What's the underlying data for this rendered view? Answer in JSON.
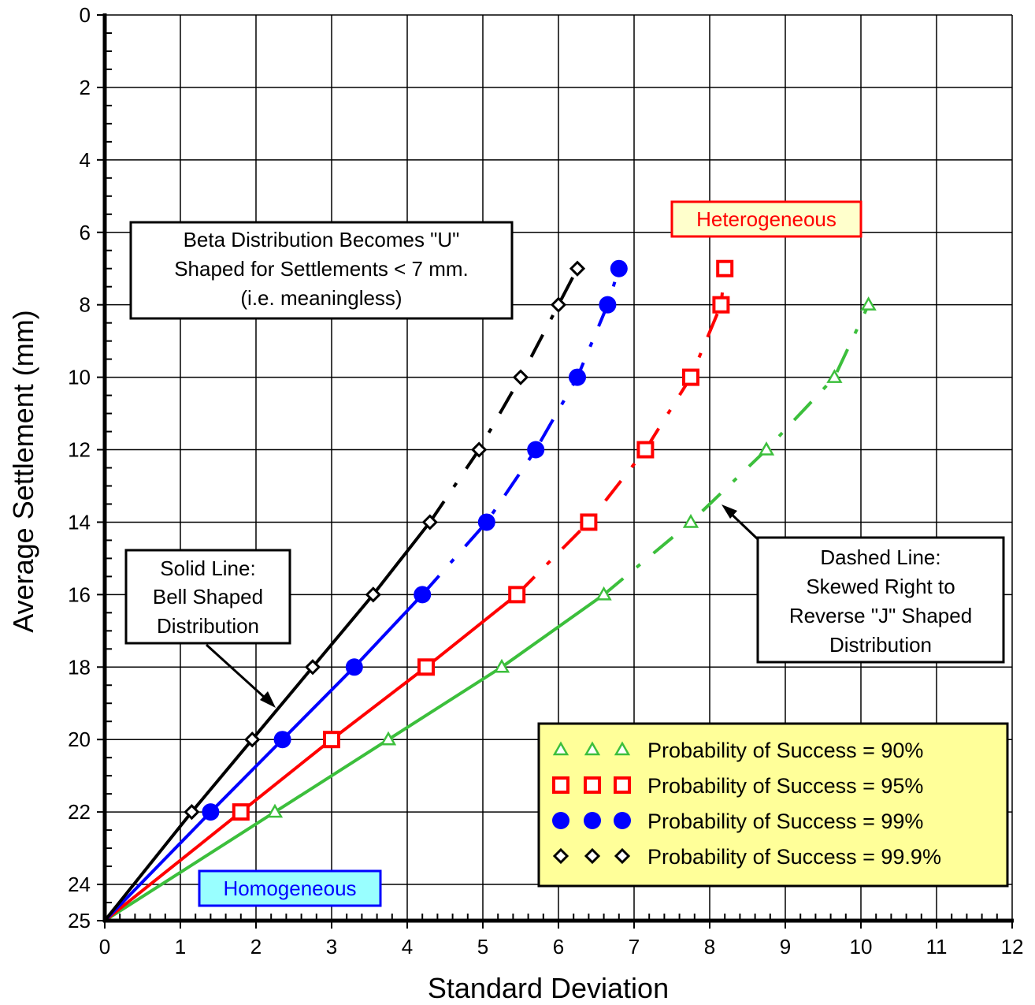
{
  "chart_data": {
    "type": "line",
    "xlabel": "Standard Deviation",
    "ylabel": "Average Settlement (mm)",
    "xlim": [
      0,
      12
    ],
    "ylim": [
      0,
      25
    ],
    "y_inverted": true,
    "grid": true,
    "x_ticks": [
      "0",
      "1",
      "2",
      "3",
      "4",
      "5",
      "6",
      "7",
      "8",
      "9",
      "10",
      "11",
      "12"
    ],
    "y_ticks": [
      "0",
      "2",
      "4",
      "6",
      "8",
      "10",
      "12",
      "14",
      "16",
      "18",
      "20",
      "22",
      "24",
      "25"
    ],
    "x_tick_values": [
      0,
      1,
      2,
      3,
      4,
      5,
      6,
      7,
      8,
      9,
      10,
      11,
      12
    ],
    "y_tick_values": [
      0,
      2,
      4,
      6,
      8,
      10,
      12,
      14,
      16,
      18,
      20,
      22,
      24,
      25
    ],
    "series": [
      {
        "name": "Probability of Success = 90%",
        "color": "#3cbf3c",
        "marker": "triangle",
        "x": [
          0,
          2.25,
          3.75,
          5.25,
          6.6,
          7.75,
          8.75,
          9.65,
          10.1
        ],
        "y": [
          25,
          22,
          20,
          18,
          16,
          14,
          12,
          10,
          8
        ],
        "solid_until_index": 4
      },
      {
        "name": "Probability of Success = 95%",
        "color": "#ff0000",
        "marker": "square",
        "x": [
          0,
          1.8,
          3.0,
          4.25,
          5.45,
          6.4,
          7.15,
          7.75,
          8.15,
          8.2
        ],
        "y": [
          25,
          22,
          20,
          18,
          16,
          14,
          12,
          10,
          8,
          7
        ],
        "solid_until_index": 4
      },
      {
        "name": "Probability of Success = 99%",
        "color": "#0000ff",
        "marker": "circle",
        "x": [
          0,
          1.4,
          2.35,
          3.3,
          4.2,
          5.05,
          5.7,
          6.25,
          6.65,
          6.8
        ],
        "y": [
          25,
          22,
          20,
          18,
          16,
          14,
          12,
          10,
          8,
          7
        ],
        "solid_until_index": 4
      },
      {
        "name": "Probability of Success = 99.9%",
        "color": "#000000",
        "marker": "diamond",
        "x": [
          0,
          1.15,
          1.95,
          2.75,
          3.55,
          4.3,
          4.95,
          5.5,
          6.0,
          6.25
        ],
        "y": [
          25,
          22,
          20,
          18,
          16,
          14,
          12,
          10,
          8,
          7
        ],
        "solid_until_index": 5
      }
    ],
    "legend": {
      "placement": "bottom-right",
      "background": "#ffff99",
      "entries": [
        "Probability of Success = 90%",
        "Probability of Success = 95%",
        "Probability of Success = 99%",
        "Probability of Success = 99.9%"
      ]
    },
    "annotations": {
      "beta_box": [
        "Beta Distribution Becomes \"U\"",
        "Shaped for Settlements < 7 mm.",
        "(i.e. meaningless)"
      ],
      "solid_box": [
        "Solid Line:",
        "Bell Shaped",
        "Distribution"
      ],
      "dashed_box": [
        "Dashed Line:",
        "Skewed Right to",
        "Reverse \"J\" Shaped",
        "Distribution"
      ],
      "heterogeneous": "Heterogeneous",
      "homogeneous": "Homogeneous"
    },
    "annotation_colors": {
      "heterogeneous_text": "#ff0000",
      "heterogeneous_bg": "#ffffcc",
      "homogeneous_text": "#0000ff",
      "homogeneous_bg": "#99ffff"
    }
  }
}
